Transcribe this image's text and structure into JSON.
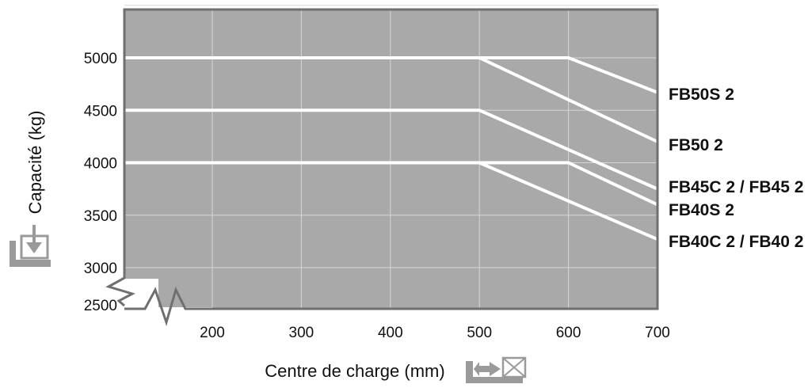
{
  "chart_data": {
    "type": "line",
    "title": "",
    "xlabel": "Centre de charge (mm)",
    "ylabel": "Capacité (kg)",
    "xlim": [
      100,
      700
    ],
    "ylim": [
      2500,
      5500
    ],
    "x_ticks": [
      200,
      300,
      400,
      500,
      600,
      700
    ],
    "x_tick_labels": [
      "200",
      "300",
      "400",
      "500",
      "600",
      "700"
    ],
    "y_ticks": [
      2500,
      3000,
      3500,
      4000,
      4500,
      5000
    ],
    "y_tick_labels": [
      "2500",
      "3000",
      "3500",
      "4000",
      "4500",
      "5000"
    ],
    "grid": true,
    "axis_break": "y-axis and x-axis broken near origin",
    "series": [
      {
        "name": "FB50S 2",
        "x": [
          100,
          600,
          700
        ],
        "y": [
          5000,
          5000,
          4670
        ]
      },
      {
        "name": "FB50 2",
        "x": [
          100,
          500,
          700
        ],
        "y": [
          5000,
          5000,
          4200
        ]
      },
      {
        "name": "FB45C 2 / FB45 2",
        "x": [
          100,
          500,
          700
        ],
        "y": [
          4500,
          4500,
          3750
        ]
      },
      {
        "name": "FB40S 2",
        "x": [
          100,
          600,
          700
        ],
        "y": [
          4000,
          4000,
          3600
        ]
      },
      {
        "name": "FB40C 2 / FB40 2",
        "x": [
          100,
          500,
          700
        ],
        "y": [
          4000,
          4000,
          3270
        ]
      }
    ]
  },
  "colors": {
    "plot_background": "#a9a9a9",
    "frame": "#6f6f6f",
    "grid": "#d6d6d6",
    "series_line": "#ffffff",
    "icon": "#9a9a9a"
  },
  "icons": {
    "y_axis_icon": "load-down-icon",
    "x_axis_icon": "load-center-icon"
  }
}
